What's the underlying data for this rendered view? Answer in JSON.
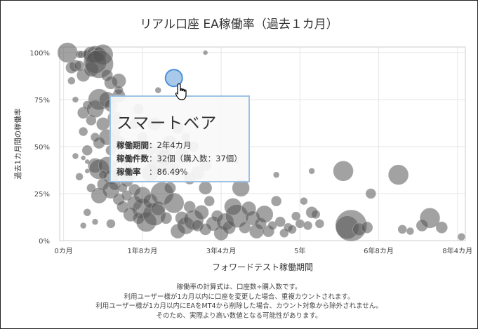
{
  "chart_data": {
    "type": "scatter",
    "title": "リアル口座 EA稼働率（過去１カ月）",
    "xlabel": "フォワードテスト稼働期間",
    "ylabel": "過去1カ月間の稼働率",
    "xunit": "months",
    "xlim": [
      -1,
      102
    ],
    "ylim": [
      0,
      100
    ],
    "xticks": [
      {
        "value": 0,
        "label": "0カ月"
      },
      {
        "value": 20,
        "label": "1年8カ月"
      },
      {
        "value": 40,
        "label": "3年4カ月"
      },
      {
        "value": 60,
        "label": "5年"
      },
      {
        "value": 80,
        "label": "6年8カ月"
      },
      {
        "value": 100,
        "label": "8年4カ月"
      }
    ],
    "yticks": [
      {
        "value": 0,
        "label": "0%"
      },
      {
        "value": 25,
        "label": "25%"
      },
      {
        "value": 50,
        "label": "50%"
      },
      {
        "value": 75,
        "label": "75%"
      },
      {
        "value": 100,
        "label": "100%"
      }
    ],
    "grid": true,
    "points": [
      [
        1,
        100,
        14
      ],
      [
        3,
        93,
        8
      ],
      [
        4,
        99,
        5
      ],
      [
        4.5,
        99,
        5
      ],
      [
        5,
        99,
        4
      ],
      [
        5.6,
        99,
        5
      ],
      [
        6,
        99,
        6
      ],
      [
        7,
        99,
        11
      ],
      [
        8,
        99,
        12
      ],
      [
        9,
        99,
        10
      ],
      [
        10,
        99,
        14
      ],
      [
        2,
        92,
        8
      ],
      [
        4,
        93,
        7
      ],
      [
        5,
        88,
        9
      ],
      [
        7,
        91,
        10
      ],
      [
        8,
        95,
        16
      ],
      [
        9,
        94,
        20
      ],
      [
        11,
        88,
        8
      ],
      [
        12,
        84,
        9
      ],
      [
        14,
        85,
        10
      ],
      [
        14,
        77,
        9
      ],
      [
        3,
        75,
        4
      ],
      [
        5,
        68,
        8
      ],
      [
        6,
        72,
        6
      ],
      [
        7,
        64,
        7
      ],
      [
        8,
        70,
        12
      ],
      [
        9,
        75,
        15
      ],
      [
        11,
        75,
        11
      ],
      [
        12,
        72,
        9
      ],
      [
        13,
        65,
        10
      ],
      [
        14,
        80,
        6
      ],
      [
        5,
        58,
        6
      ],
      [
        6,
        48,
        7
      ],
      [
        8,
        55,
        6
      ],
      [
        9,
        52,
        8
      ],
      [
        10,
        62,
        9
      ],
      [
        11,
        55,
        11
      ],
      [
        12,
        48,
        7
      ],
      [
        13,
        58,
        8
      ],
      [
        14,
        52,
        10
      ],
      [
        15,
        45,
        7
      ],
      [
        6,
        42,
        3
      ],
      [
        8,
        40,
        10
      ],
      [
        9,
        38,
        14
      ],
      [
        11,
        40,
        12
      ],
      [
        12,
        34,
        10
      ],
      [
        13,
        30,
        8
      ],
      [
        14,
        36,
        9
      ],
      [
        15,
        28,
        6
      ],
      [
        10,
        30,
        8
      ],
      [
        16,
        32,
        9
      ],
      [
        7,
        28,
        6
      ],
      [
        9,
        24,
        11
      ],
      [
        10,
        35,
        6
      ],
      [
        12,
        27,
        12
      ],
      [
        14,
        22,
        8
      ],
      [
        16,
        24,
        7
      ],
      [
        18,
        20,
        10
      ],
      [
        20,
        17,
        14
      ],
      [
        18,
        27,
        8
      ],
      [
        20,
        24,
        12
      ],
      [
        15,
        18,
        8
      ],
      [
        17,
        14,
        10
      ],
      [
        19,
        12,
        8
      ],
      [
        21,
        10,
        14
      ],
      [
        23,
        14,
        16
      ],
      [
        22,
        21,
        10
      ],
      [
        24,
        17,
        10
      ],
      [
        26,
        12,
        8
      ],
      [
        25,
        25,
        16
      ],
      [
        27,
        28,
        8
      ],
      [
        28,
        20,
        14
      ],
      [
        30,
        12,
        9
      ],
      [
        29,
        5,
        10
      ],
      [
        31,
        8,
        12
      ],
      [
        32,
        18,
        8
      ],
      [
        33,
        11,
        14
      ],
      [
        34,
        8,
        8
      ],
      [
        35,
        15,
        10
      ],
      [
        36,
        6,
        8
      ],
      [
        37,
        21,
        7
      ],
      [
        38,
        9,
        10
      ],
      [
        39,
        13,
        8
      ],
      [
        40,
        4,
        10
      ],
      [
        41,
        10,
        12
      ],
      [
        42,
        7,
        9
      ],
      [
        44,
        13,
        16
      ],
      [
        43,
        18,
        12
      ],
      [
        45,
        28,
        12
      ],
      [
        46,
        7,
        8
      ],
      [
        47,
        17,
        10
      ],
      [
        48,
        12,
        10
      ],
      [
        49,
        5,
        10
      ],
      [
        50,
        9,
        8
      ],
      [
        51,
        14,
        12
      ],
      [
        52,
        5,
        8
      ],
      [
        53,
        8,
        6
      ],
      [
        54,
        21,
        7
      ],
      [
        55,
        10,
        7
      ],
      [
        56,
        4,
        6
      ],
      [
        57,
        7,
        6
      ],
      [
        58,
        6,
        6
      ],
      [
        59,
        13,
        6
      ],
      [
        60,
        9,
        6
      ],
      [
        61,
        21,
        5
      ],
      [
        62,
        8,
        6
      ],
      [
        63,
        15,
        8
      ],
      [
        64,
        14,
        6
      ],
      [
        65,
        9,
        6
      ],
      [
        16,
        42,
        8
      ],
      [
        17,
        36,
        10
      ],
      [
        22,
        36,
        12
      ],
      [
        24,
        40,
        14
      ],
      [
        26,
        44,
        12
      ],
      [
        28,
        38,
        9
      ],
      [
        30,
        45,
        11
      ],
      [
        32,
        33,
        8
      ],
      [
        34,
        36,
        9
      ],
      [
        36,
        28,
        9
      ],
      [
        27,
        52,
        10
      ],
      [
        29,
        60,
        8
      ],
      [
        20,
        55,
        7
      ],
      [
        18,
        62,
        7
      ],
      [
        31,
        55,
        6
      ],
      [
        33,
        50,
        7
      ],
      [
        21,
        48,
        12
      ],
      [
        25,
        48,
        10
      ],
      [
        19,
        70,
        7
      ],
      [
        23,
        62,
        9
      ],
      [
        36,
        40,
        8
      ],
      [
        71,
        37,
        14
      ],
      [
        85,
        35,
        14
      ],
      [
        78,
        25,
        7
      ],
      [
        72,
        7,
        16
      ],
      [
        73,
        8,
        22
      ],
      [
        75,
        6,
        9
      ],
      [
        77,
        7,
        8
      ],
      [
        86,
        6,
        6
      ],
      [
        88,
        5,
        5
      ],
      [
        91,
        8,
        8
      ],
      [
        93,
        12,
        14
      ],
      [
        96,
        7,
        8
      ],
      [
        101,
        2,
        5
      ],
      [
        5,
        8,
        4
      ],
      [
        8,
        10,
        4
      ],
      [
        6,
        15,
        5
      ],
      [
        4,
        34,
        5
      ],
      [
        12,
        9,
        6
      ],
      [
        3,
        45,
        4
      ],
      [
        24,
        80,
        4
      ],
      [
        2,
        85,
        5
      ],
      [
        36,
        100,
        3
      ],
      [
        63,
        37,
        4
      ],
      [
        54,
        35,
        4
      ],
      [
        44,
        42,
        3
      ],
      [
        13,
        41,
        3
      ],
      [
        5,
        44,
        3
      ],
      [
        6,
        37,
        3
      ]
    ],
    "highlight": {
      "x": 28,
      "y": 86.49,
      "r": 12,
      "name": "スマートベア",
      "period_label": "稼働期間",
      "period_value": "2年4カ月",
      "count_label": "稼働件数",
      "count_value": "32個（購入数：37個）",
      "rate_label": "稼働率",
      "rate_value": "86.49%"
    }
  },
  "footnotes": [
    "稼働率の計算式は、口座数÷購入数です。",
    "利用ユーザー様が1カ月以内に口座を変更した場合、重複カウントされます。",
    "利用ユーザー様が1カ月以内にEAをMT4から削除した場合、カウント対象から除外されません。",
    "そのため、実際より高い数値となる可能性があります。"
  ],
  "colors": {
    "bubble_fill": "#555555",
    "bubble_stroke": "#aaaaaa",
    "highlight_fill": "#a9c9ea",
    "highlight_stroke": "#4a90d9",
    "grid": "#e6e6e6",
    "plot_border": "#cccccc"
  }
}
